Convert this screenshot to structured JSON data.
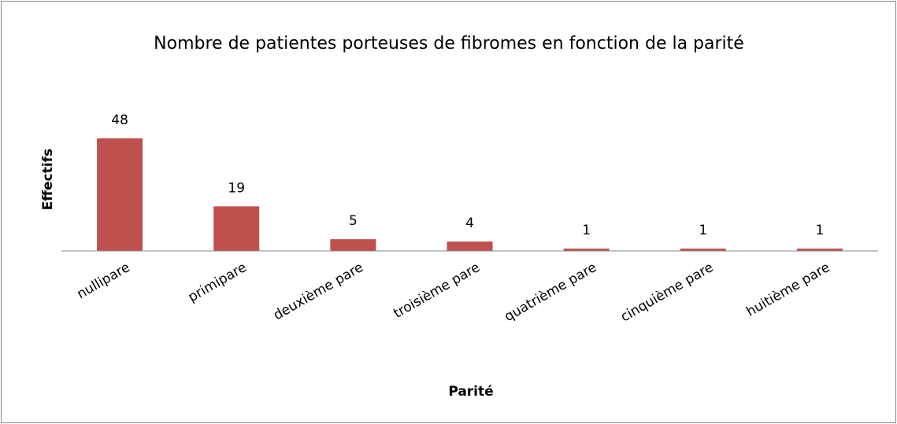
{
  "chart_data": {
    "type": "bar",
    "title": "Nombre de patientes porteuses de fibromes en fonction de la parité",
    "xlabel": "Parité",
    "ylabel": "Effectifs",
    "categories": [
      "nullipare",
      "primipare",
      "deuxième pare",
      "troisième pare",
      "quatrième pare",
      "cinquième pare",
      "huitième pare"
    ],
    "values": [
      48,
      19,
      5,
      4,
      1,
      1,
      1
    ],
    "color": "#c0504d",
    "ylim": [
      0,
      60
    ]
  }
}
